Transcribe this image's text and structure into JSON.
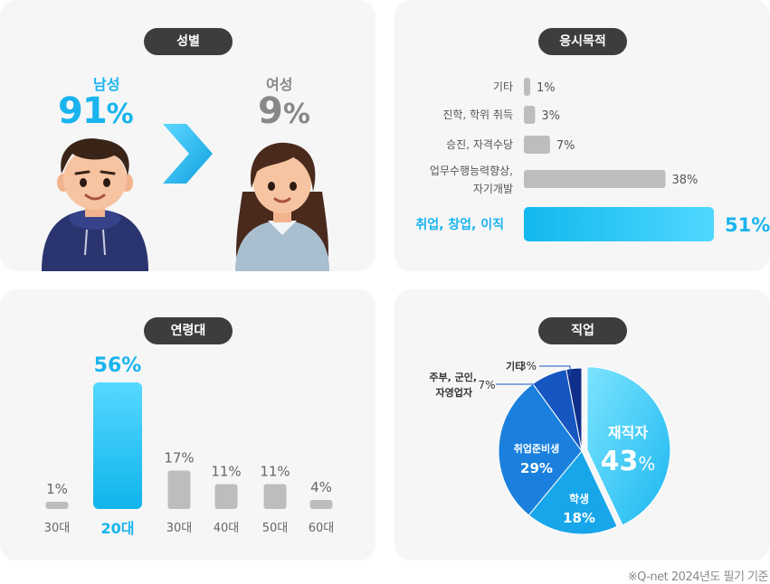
{
  "gender": {
    "title": "성별",
    "male": {
      "label": "남성",
      "num": "91",
      "unit": "%",
      "value": 91
    },
    "female": {
      "label": "여성",
      "num": "9",
      "unit": "%",
      "value": 9
    }
  },
  "purpose": {
    "title": "응시목적",
    "items": [
      {
        "label": "기타",
        "value_label": "1%",
        "value": 1
      },
      {
        "label": "진학, 학위 취득",
        "value_label": "3%",
        "value": 3
      },
      {
        "label": "승진, 자격수당",
        "value_label": "7%",
        "value": 7
      },
      {
        "label": "업무수행능력향상,",
        "label2": "자기개발",
        "value_label": "38%",
        "value": 38
      },
      {
        "label": "취업, 창업, 이직",
        "value_label": "51%",
        "value": 51,
        "highlight": true
      }
    ]
  },
  "age": {
    "title": "연령대",
    "items": [
      {
        "label": "30대",
        "value_label": "1%",
        "value": 1
      },
      {
        "label": "20대",
        "value_label": "56%",
        "value": 56,
        "highlight": true
      },
      {
        "label": "30대",
        "value_label": "17%",
        "value": 17
      },
      {
        "label": "40대",
        "value_label": "11%",
        "value": 11
      },
      {
        "label": "50대",
        "value_label": "11%",
        "value": 11
      },
      {
        "label": "60대",
        "value_label": "4%",
        "value": 4
      }
    ]
  },
  "job": {
    "title": "직업",
    "slices": [
      {
        "label": "재직자",
        "num": "43",
        "unit": "%",
        "value": 43
      },
      {
        "label": "학생",
        "num": "18",
        "unit": "%",
        "value": 18
      },
      {
        "label": "취업준비생",
        "num": "29",
        "unit": "%",
        "value": 29
      },
      {
        "label1": "주부, 군인,",
        "label2": "자영업자",
        "num": "7",
        "unit": "%",
        "value": 7
      },
      {
        "label": "기타",
        "num": "3",
        "unit": "%",
        "value": 3
      }
    ]
  },
  "footnote": "※Q-net 2024년도 필기 기준",
  "colors": {
    "accent": "#19b4ee",
    "bar_gray": "#bdbdbd",
    "pill": "#3d3d3d"
  },
  "chart_data": [
    {
      "type": "bar",
      "title": "응시목적",
      "orientation": "horizontal",
      "categories": [
        "기타",
        "진학, 학위 취득",
        "승진, 자격수당",
        "업무수행능력향상, 자기개발",
        "취업, 창업, 이직"
      ],
      "values": [
        1,
        3,
        7,
        38,
        51
      ]
    },
    {
      "type": "bar",
      "title": "연령대",
      "categories": [
        "30대",
        "20대",
        "30대",
        "40대",
        "50대",
        "60대"
      ],
      "values": [
        1,
        56,
        17,
        11,
        11,
        4
      ]
    },
    {
      "type": "pie",
      "title": "직업",
      "categories": [
        "재직자",
        "학생",
        "취업준비생",
        "주부, 군인, 자영업자",
        "기타"
      ],
      "values": [
        43,
        18,
        29,
        7,
        3
      ]
    }
  ]
}
